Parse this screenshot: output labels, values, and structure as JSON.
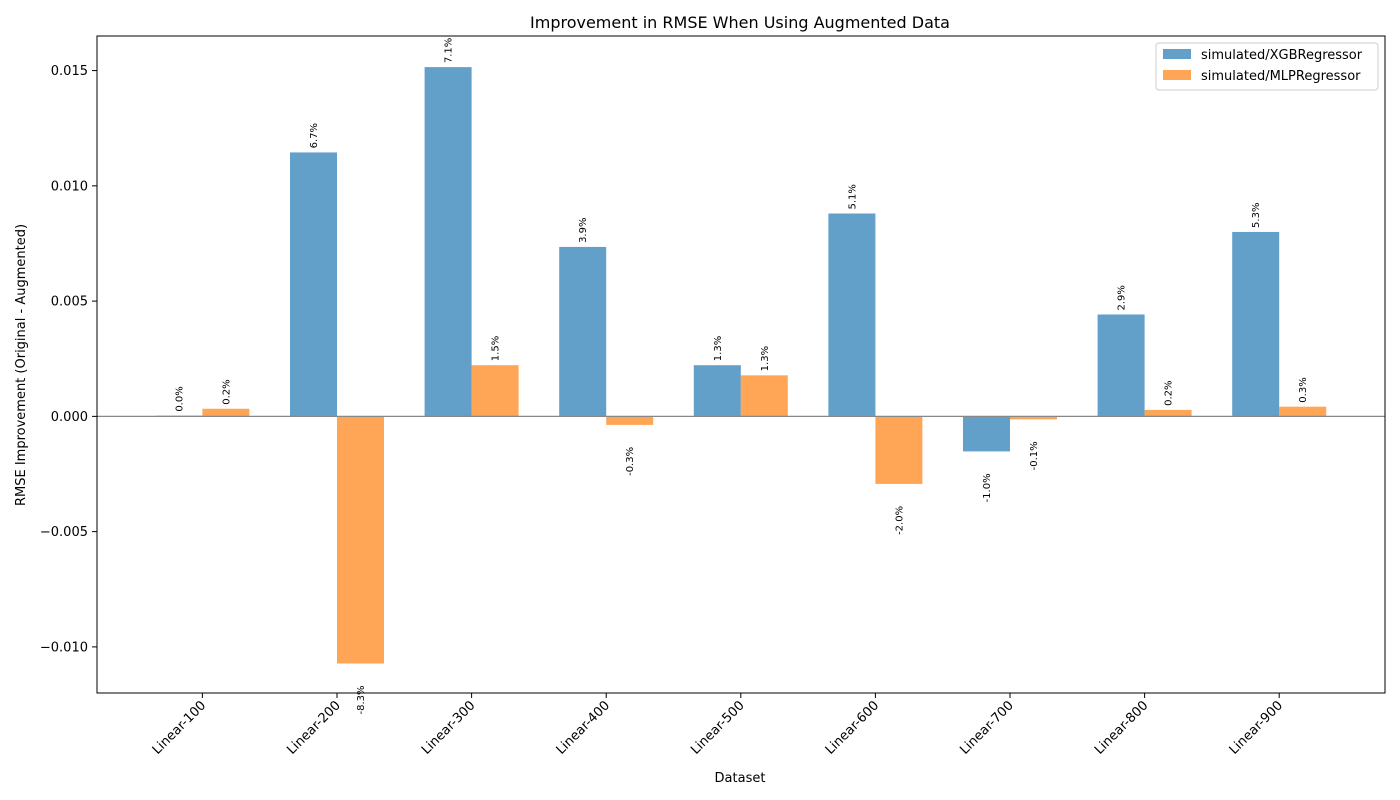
{
  "chart_data": {
    "type": "bar",
    "title": "Improvement in RMSE When Using Augmented Data",
    "xlabel": "Dataset",
    "ylabel": "RMSE Improvement (Original - Augmented)",
    "categories": [
      "Linear-100",
      "Linear-200",
      "Linear-300",
      "Linear-400",
      "Linear-500",
      "Linear-600",
      "Linear-700",
      "Linear-800",
      "Linear-900"
    ],
    "series": [
      {
        "name": "simulated/XGBRegressor",
        "color": "#1f77b4",
        "values": [
          3e-05,
          0.01145,
          0.01515,
          0.00735,
          0.00222,
          0.0088,
          -0.00152,
          0.00442,
          0.008
        ],
        "labels": [
          "0.0%",
          "6.7%",
          "7.1%",
          "3.9%",
          "1.3%",
          "5.1%",
          "-1.0%",
          "2.9%",
          "5.3%"
        ]
      },
      {
        "name": "simulated/MLPRegressor",
        "color": "#ff7f0e",
        "values": [
          0.00033,
          -0.01072,
          0.00222,
          -0.00037,
          0.00178,
          -0.00293,
          -0.00013,
          0.00028,
          0.00042
        ],
        "labels": [
          "0.2%",
          "-8.3%",
          "1.5%",
          "-0.3%",
          "1.3%",
          "-2.0%",
          "-0.1%",
          "0.2%",
          "0.3%"
        ]
      }
    ],
    "ylim": [
      -0.012,
      0.0165
    ],
    "yticks": [
      -0.01,
      -0.005,
      0.0,
      0.005,
      0.01,
      0.015
    ],
    "ytick_labels": [
      "−0.010",
      "−0.005",
      "0.000",
      "0.005",
      "0.010",
      "0.015"
    ],
    "grid": false,
    "legend": "top-right"
  }
}
